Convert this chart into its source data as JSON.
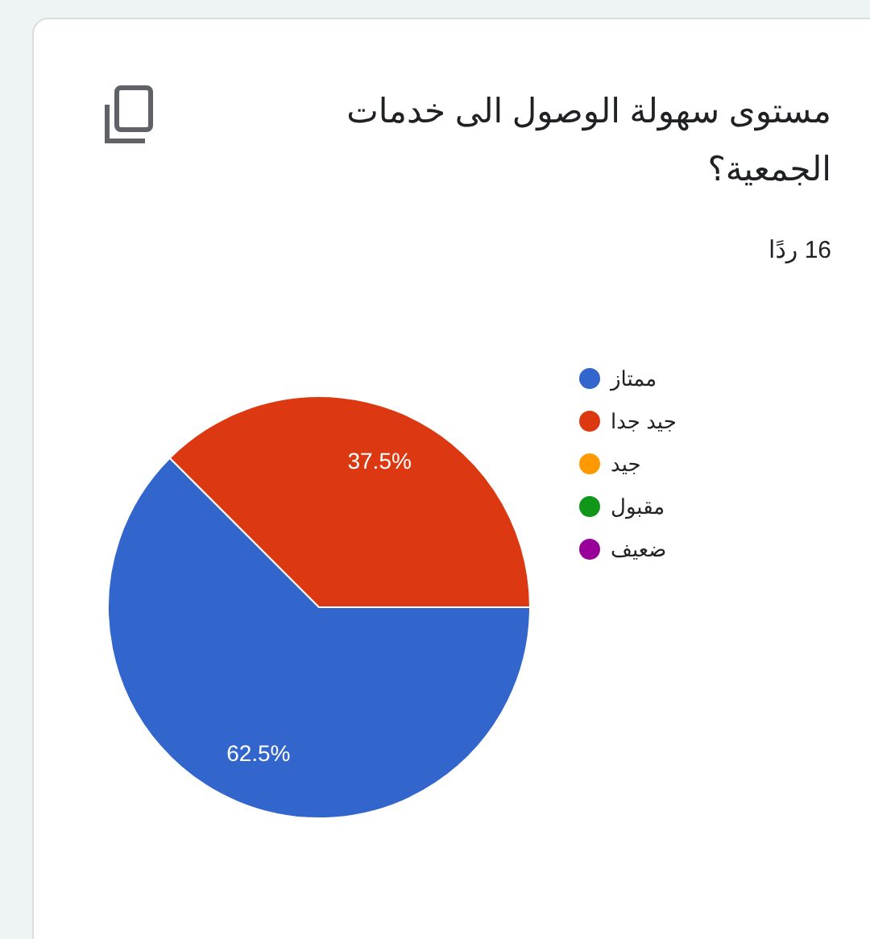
{
  "chart_data": {
    "type": "pie",
    "title": "مستوى سهولة الوصول الى خدمات الجمعية؟",
    "subtitle": "16 ردًا",
    "categories": [
      "ممتاز",
      "جيد جدا",
      "جيد",
      "مقبول",
      "ضعيف"
    ],
    "values": [
      62.5,
      37.5,
      0,
      0,
      0
    ],
    "colors": [
      "#3366cc",
      "#dc3912",
      "#ff9900",
      "#109618",
      "#990099"
    ],
    "value_labels": [
      "62.5%",
      "37.5%",
      null,
      null,
      null
    ],
    "legend": "right"
  }
}
